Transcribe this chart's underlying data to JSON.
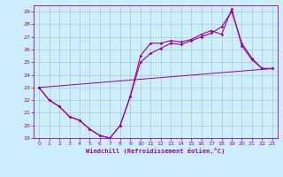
{
  "title": "",
  "xlabel": "Windchill (Refroidissement éolien,°C)",
  "bg_color": "#cceeff",
  "line_color": "#990099",
  "grid_color": "#aaccbb",
  "xlim": [
    -0.5,
    23.5
  ],
  "ylim": [
    19,
    29.5
  ],
  "xticks": [
    0,
    1,
    2,
    3,
    4,
    5,
    6,
    7,
    8,
    9,
    10,
    11,
    12,
    13,
    14,
    15,
    16,
    17,
    18,
    19,
    20,
    21,
    22,
    23
  ],
  "yticks": [
    19,
    20,
    21,
    22,
    23,
    24,
    25,
    26,
    27,
    28,
    29
  ],
  "series1_x": [
    0,
    1,
    2,
    3,
    4,
    5,
    6,
    7,
    8,
    9,
    10,
    11,
    12,
    13,
    14,
    15,
    16,
    17,
    18,
    19,
    20,
    21,
    22,
    23
  ],
  "series1_y": [
    23,
    22,
    21.5,
    20.7,
    20.4,
    19.7,
    19.2,
    19.0,
    20.0,
    22.3,
    25.5,
    26.5,
    26.5,
    26.7,
    26.6,
    26.8,
    27.2,
    27.5,
    27.2,
    29.2,
    26.3,
    25.2,
    24.5,
    24.5
  ],
  "series2_x": [
    0,
    1,
    2,
    3,
    4,
    5,
    6,
    7,
    8,
    9,
    10,
    11,
    12,
    13,
    14,
    15,
    16,
    17,
    18,
    19,
    20,
    21,
    22,
    23
  ],
  "series2_y": [
    23,
    22,
    21.5,
    20.7,
    20.4,
    19.7,
    19.2,
    19.0,
    20.0,
    22.3,
    25.0,
    25.7,
    26.1,
    26.5,
    26.4,
    26.7,
    27.0,
    27.3,
    27.8,
    29.0,
    26.5,
    25.3,
    24.5,
    24.5
  ],
  "series3_x": [
    0,
    23
  ],
  "series3_y": [
    23,
    24.5
  ]
}
